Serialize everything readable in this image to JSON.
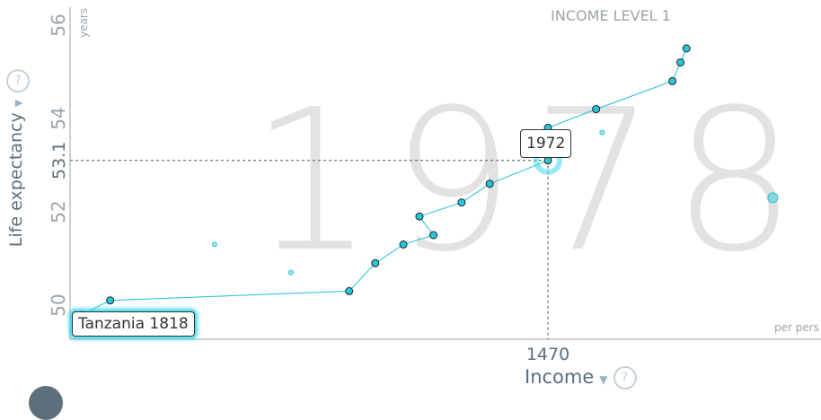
{
  "header": {
    "income_level": "INCOME LEVEL 1"
  },
  "year_watermark": "1978",
  "axes": {
    "y_label": "Life expectancy",
    "y_unit": "years",
    "x_label": "Income",
    "x_unit": "per pers",
    "dropdown_icon": "triangle-down-icon",
    "help_icon": "question-icon",
    "help_text": "?",
    "arrow_text": "▼"
  },
  "tooltips": {
    "country": "Tanzania 1818",
    "year": "1972"
  },
  "highlight": {
    "income": 1470,
    "life_expectancy": 53.1,
    "x_label": "1470",
    "y_label": "53.1"
  },
  "colors": {
    "trail": "#1fbfd6",
    "bubble": "#26c6da",
    "accent_glow": "#40d8ec",
    "watermark": "#e2e2e2",
    "axis_text": "#5b6f7d"
  },
  "chart_data": {
    "type": "scatter",
    "title": "",
    "xlabel": "Income",
    "ylabel": "Life expectancy",
    "ylim": [
      49.6,
      56.6
    ],
    "y_ticks": [
      "50",
      "52",
      "53.1",
      "54",
      "56"
    ],
    "x_ticks": [
      "1470"
    ],
    "trail_series": {
      "name": "Tanzania",
      "points": [
        {
          "x": 310,
          "y": 49.8
        },
        {
          "x": 380,
          "y": 50.1
        },
        {
          "x": 975,
          "y": 50.3
        },
        {
          "x": 1040,
          "y": 50.9
        },
        {
          "x": 1110,
          "y": 51.3
        },
        {
          "x": 1185,
          "y": 51.5
        },
        {
          "x": 1150,
          "y": 51.9
        },
        {
          "x": 1255,
          "y": 52.2
        },
        {
          "x": 1325,
          "y": 52.6
        },
        {
          "x": 1470,
          "y": 53.1
        },
        {
          "x": 1485,
          "y": 53.5
        },
        {
          "x": 1470,
          "y": 53.8
        },
        {
          "x": 1590,
          "y": 54.2
        },
        {
          "x": 1780,
          "y": 54.8
        },
        {
          "x": 1800,
          "y": 55.2
        },
        {
          "x": 1815,
          "y": 55.5
        }
      ]
    },
    "other_points": [
      {
        "x": 640,
        "y": 51.3
      },
      {
        "x": 830,
        "y": 50.7
      },
      {
        "x": 1605,
        "y": 53.7
      },
      {
        "x": 2030,
        "y": 52.3
      }
    ]
  }
}
